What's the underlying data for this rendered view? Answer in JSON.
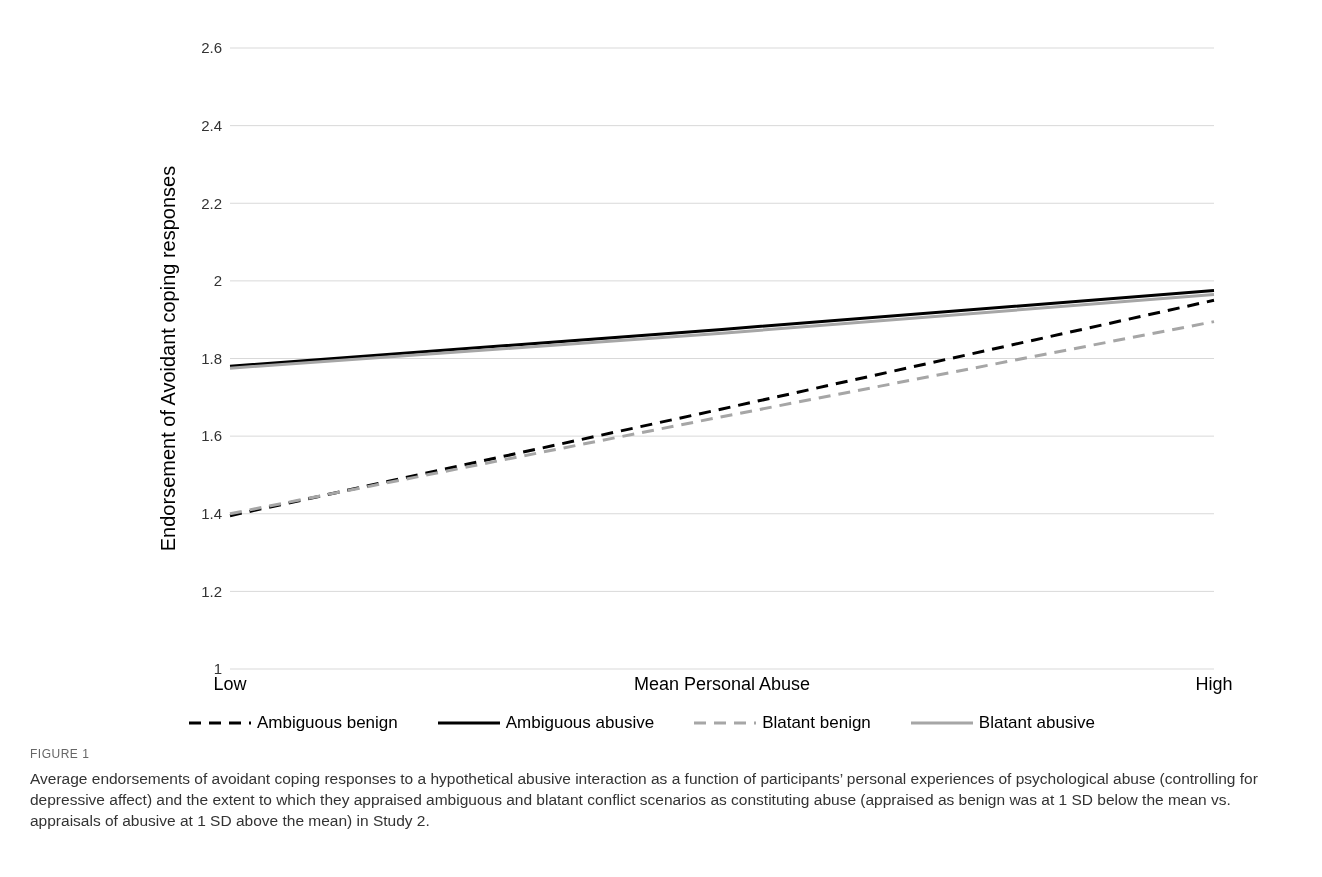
{
  "chart_data": {
    "type": "line",
    "ylabel": "Endorsement of Avoidant coping responses",
    "categories": [
      "Low",
      "Mean Personal Abuse",
      "High"
    ],
    "series": [
      {
        "name": "Ambiguous benign",
        "color": "#000000",
        "line_style": "dashed",
        "values": [
          1.395,
          1.67,
          1.95
        ]
      },
      {
        "name": "Ambiguous abusive",
        "color": "#000000",
        "line_style": "solid",
        "values": [
          1.78,
          1.875,
          1.975
        ]
      },
      {
        "name": "Blatant benign",
        "color": "#a6a6a6",
        "line_style": "dashed",
        "values": [
          1.4,
          1.65,
          1.895
        ]
      },
      {
        "name": "Blatant abusive",
        "color": "#a6a6a6",
        "line_style": "solid",
        "values": [
          1.775,
          1.865,
          1.965
        ]
      }
    ],
    "ylim": [
      1,
      2.6
    ],
    "yticks": [
      1,
      1.2,
      1.4,
      1.6,
      1.8,
      2,
      2.2,
      2.4,
      2.6
    ],
    "grid": "y",
    "legend": "bottom",
    "marker": "none",
    "annotations": [
      "FIGURE 1",
      "Average endorsements of avoidant coping responses to a hypothetical abusive interaction as a function of participants’ personal experiences of psychological abuse (controlling for depressive affect) and the extent to which they appraised ambiguous and blatant conflict scenarios as constituting abuse (appraised as benign was at 1 SD below the mean vs. appraisals of abusive at 1 SD above the mean) in Study 2."
    ]
  }
}
